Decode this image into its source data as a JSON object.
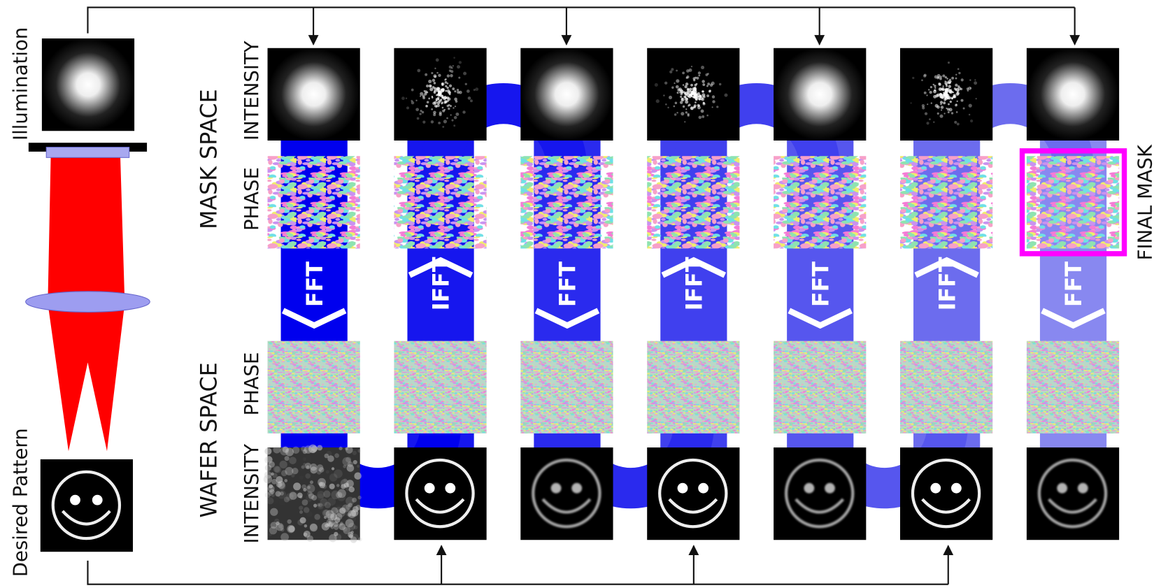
{
  "labels": {
    "illumination": "Illumination",
    "desired_pattern": "Desired Pattern",
    "mask_space": "MASK SPACE",
    "wafer_space": "WAFER SPACE",
    "final_mask": "FINAL MASK"
  },
  "row_labels": {
    "mask_intensity": "INTENSITY",
    "mask_phase": "PHASE",
    "wafer_phase": "PHASE",
    "wafer_intensity": "INTENSITY"
  },
  "transforms": [
    "FFT",
    "IFFT",
    "FFT",
    "IFFT",
    "FFT",
    "IFFT",
    "FFT"
  ]
}
